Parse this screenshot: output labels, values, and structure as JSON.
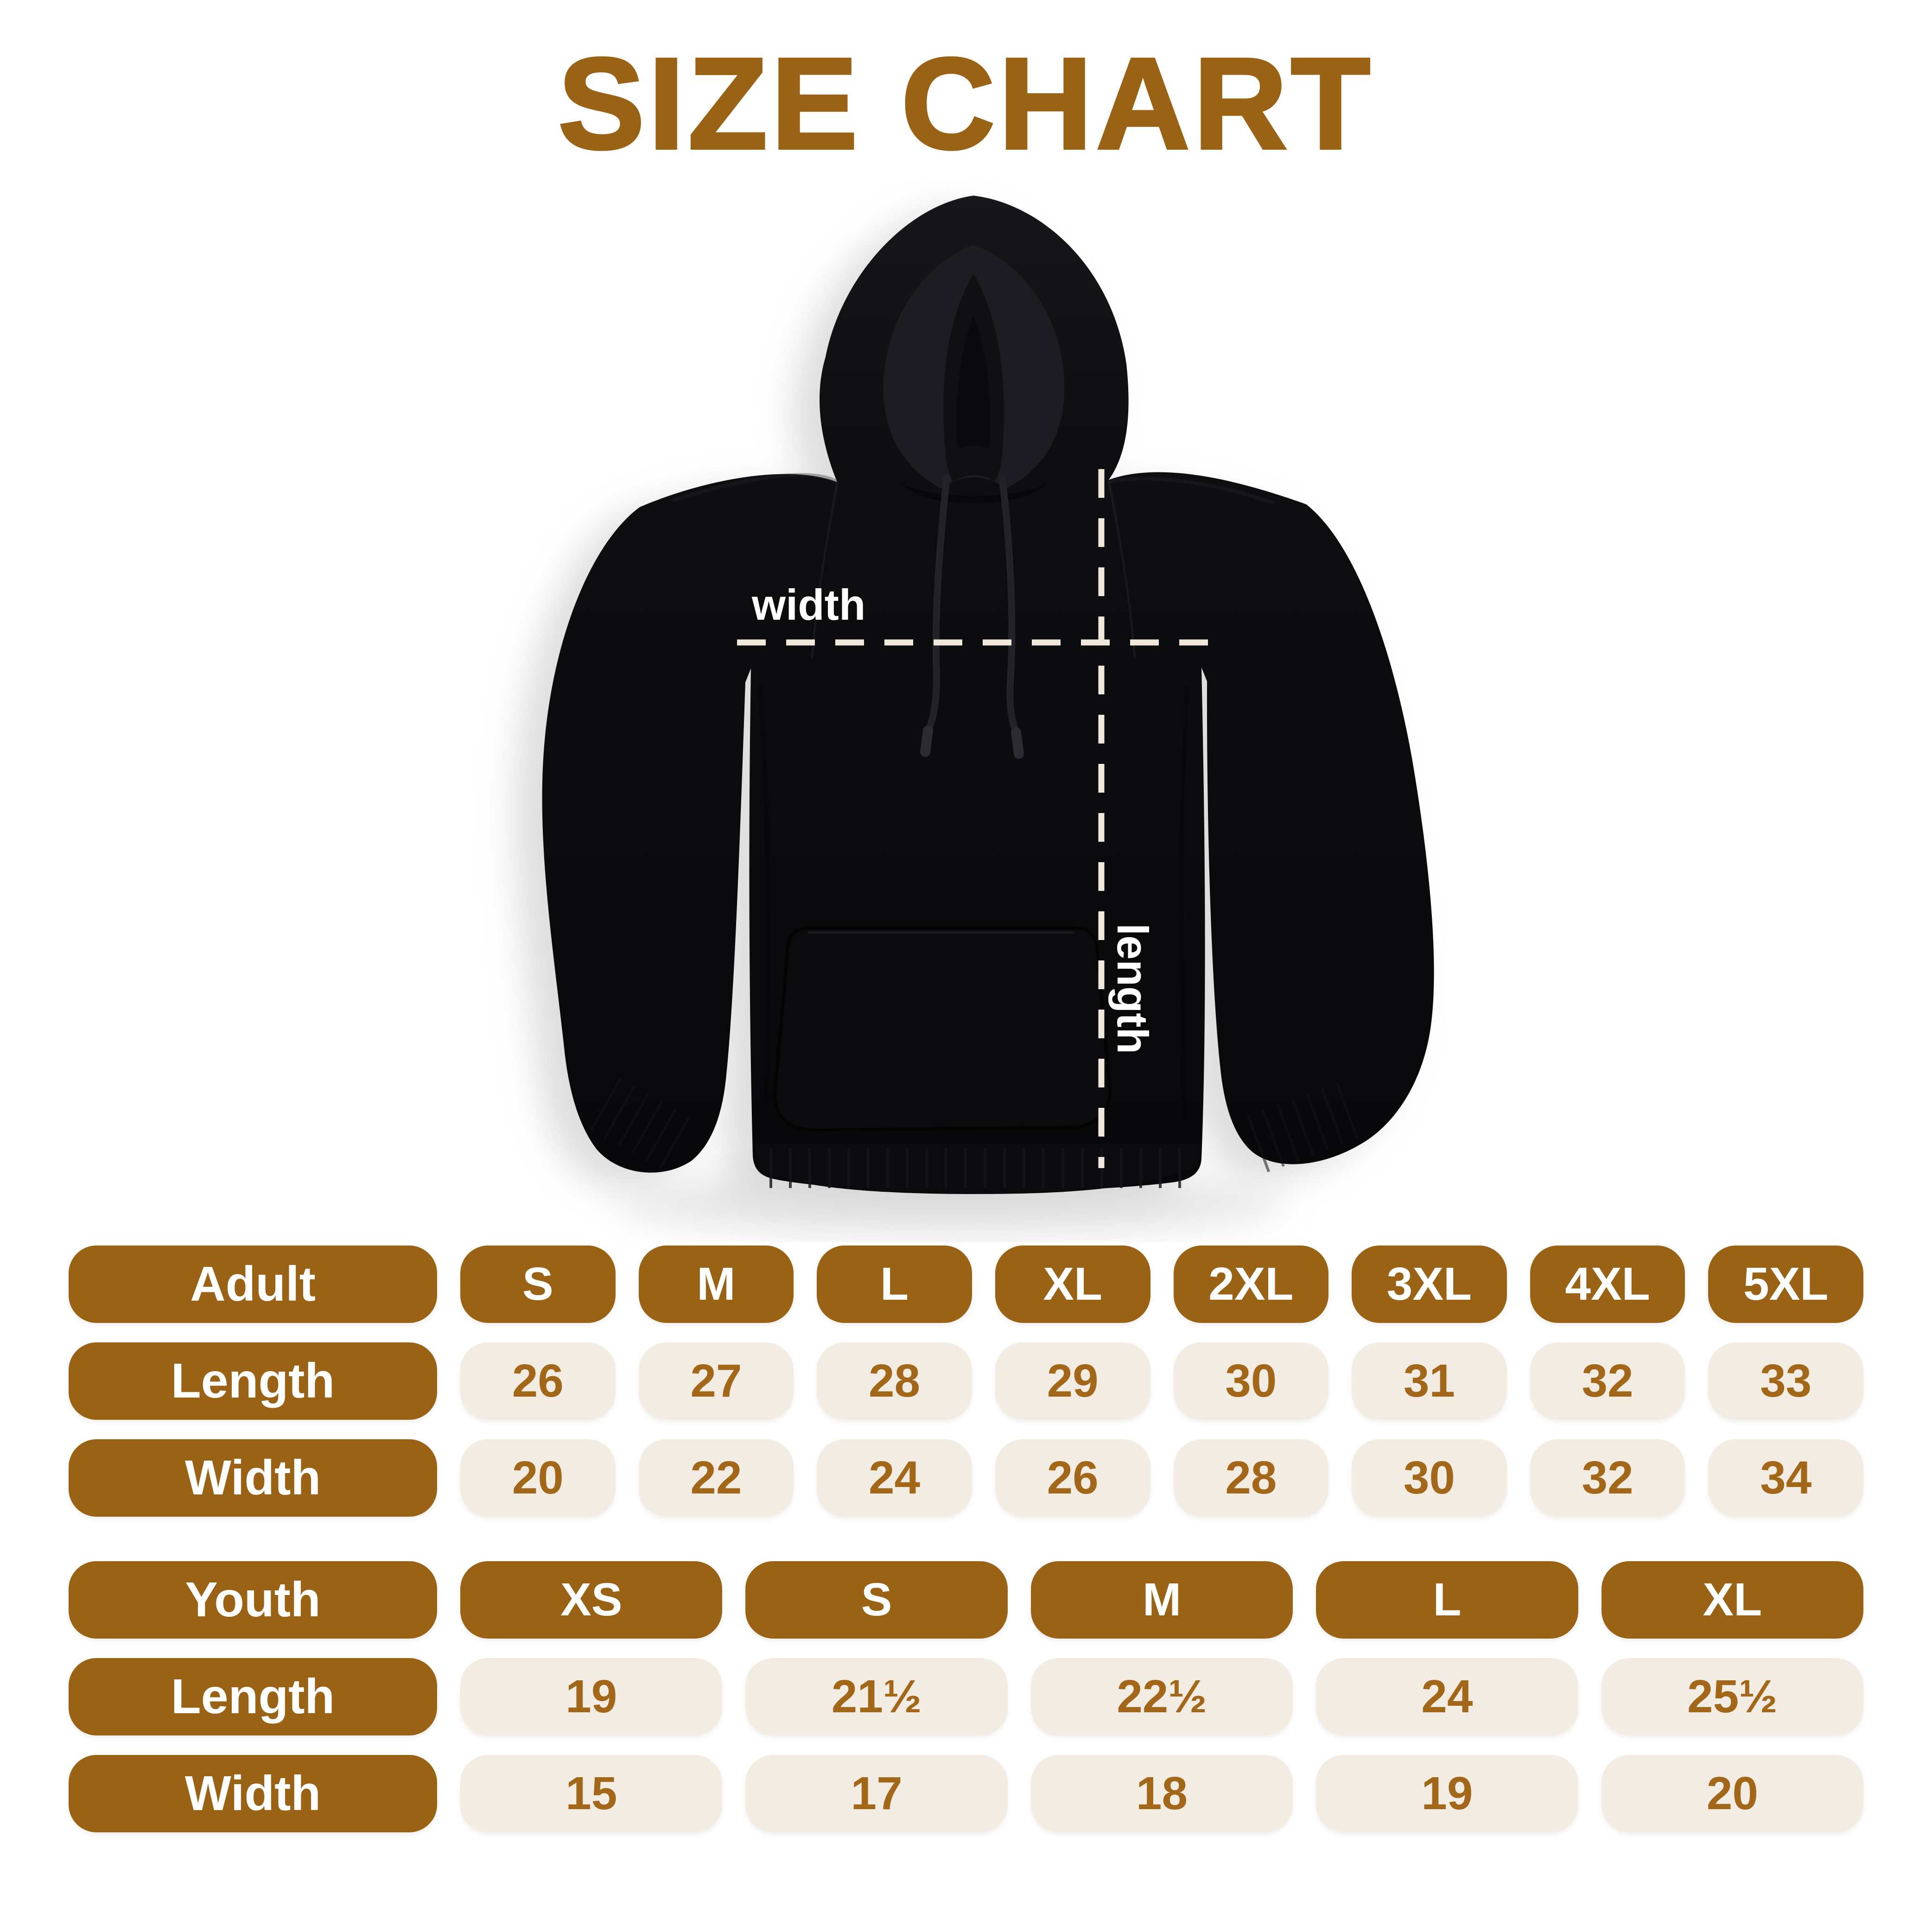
{
  "title": "SIZE CHART",
  "colors": {
    "accent": "#9A6215",
    "value_text": "#A3671A",
    "pill_bg": "#F2ECE3",
    "dash": "#EFE8DB"
  },
  "diagram": {
    "width_label": "width",
    "length_label": "length"
  },
  "chart_data": [
    {
      "type": "table",
      "group_label": "Adult",
      "columns": [
        "S",
        "M",
        "L",
        "XL",
        "2XL",
        "3XL",
        "4XL",
        "5XL"
      ],
      "rows": [
        {
          "label": "Length",
          "values": [
            "26",
            "27",
            "28",
            "29",
            "30",
            "31",
            "32",
            "33"
          ]
        },
        {
          "label": "Width",
          "values": [
            "20",
            "22",
            "24",
            "26",
            "28",
            "30",
            "32",
            "34"
          ]
        }
      ]
    },
    {
      "type": "table",
      "group_label": "Youth",
      "columns": [
        "XS",
        "S",
        "M",
        "L",
        "XL"
      ],
      "rows": [
        {
          "label": "Length",
          "values": [
            "19",
            "21½",
            "22½",
            "24",
            "25½"
          ]
        },
        {
          "label": "Width",
          "values": [
            "15",
            "17",
            "18",
            "19",
            "20"
          ]
        }
      ]
    }
  ]
}
